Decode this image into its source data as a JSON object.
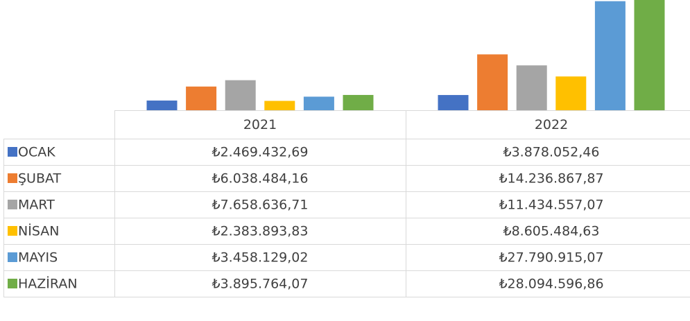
{
  "chart_data": {
    "type": "bar",
    "categories": [
      "2021",
      "2022"
    ],
    "series": [
      {
        "name": "OCAK",
        "color": "#4472c4",
        "values": [
          2469432.69,
          3878052.46
        ],
        "value_labels": [
          "₺2.469.432,69",
          "₺3.878.052,46"
        ]
      },
      {
        "name": "ŞUBAT",
        "color": "#ed7d31",
        "values": [
          6038484.16,
          14236867.87
        ],
        "value_labels": [
          "₺6.038.484,16",
          "₺14.236.867,87"
        ]
      },
      {
        "name": "MART",
        "color": "#a5a5a5",
        "values": [
          7658636.71,
          11434557.07
        ],
        "value_labels": [
          "₺7.658.636,71",
          "₺11.434.557,07"
        ]
      },
      {
        "name": "NİSAN",
        "color": "#ffc000",
        "values": [
          2383893.83,
          8605484.63
        ],
        "value_labels": [
          "₺2.383.893,83",
          "₺8.605.484,63"
        ]
      },
      {
        "name": "MAYIS",
        "color": "#5b9bd5",
        "values": [
          3458129.02,
          27790915.07
        ],
        "value_labels": [
          "₺3.458.129,02",
          "₺27.790.915,07"
        ]
      },
      {
        "name": "HAZİRAN",
        "color": "#70ad47",
        "values": [
          3895764.07,
          28094596.86
        ],
        "value_labels": [
          "₺3.895.764,07",
          "₺28.094.596,86"
        ]
      }
    ]
  }
}
